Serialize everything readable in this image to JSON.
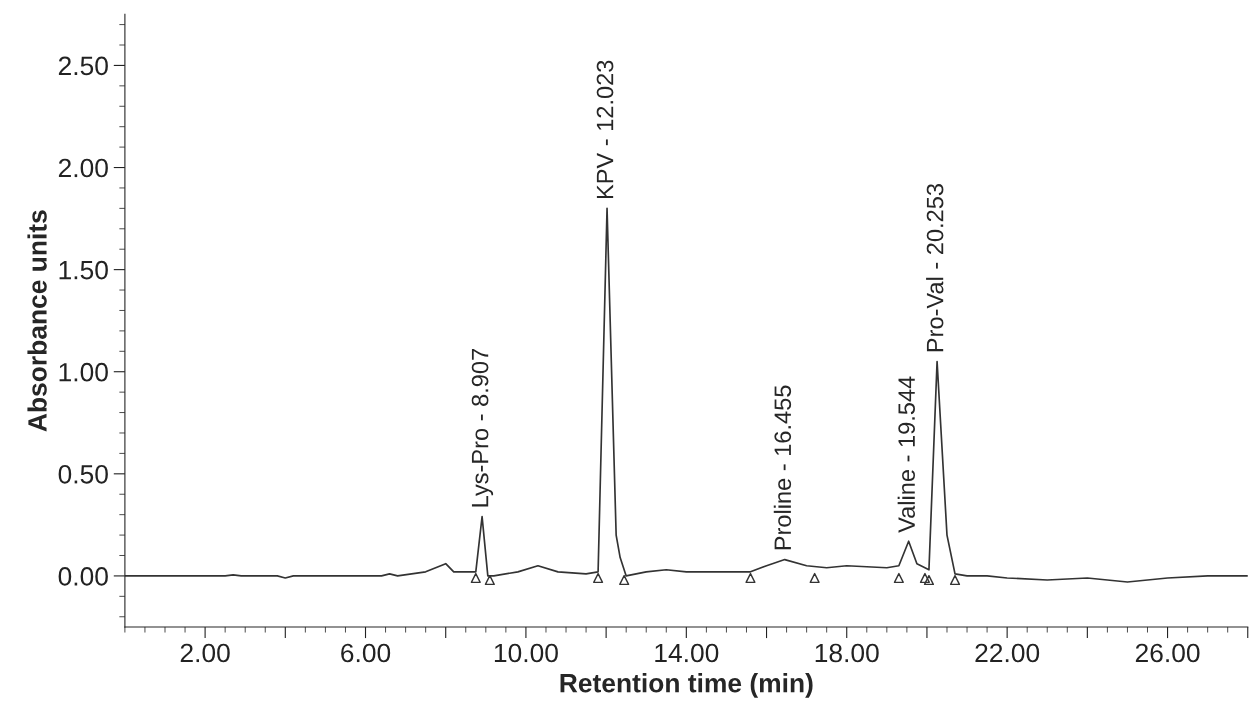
{
  "chart_data": {
    "type": "line",
    "xlabel": "Retention time (min)",
    "ylabel": "Absorbance units",
    "xlim": [
      0,
      28
    ],
    "ylim": [
      -0.25,
      2.75
    ],
    "xticks": [
      {
        "value": 2,
        "label": "2.00"
      },
      {
        "value": 4,
        "label": null
      },
      {
        "value": 6,
        "label": "6.00"
      },
      {
        "value": 8,
        "label": null
      },
      {
        "value": 10,
        "label": "10.00"
      },
      {
        "value": 12,
        "label": null
      },
      {
        "value": 14,
        "label": "14.00"
      },
      {
        "value": 16,
        "label": null
      },
      {
        "value": 18,
        "label": "18.00"
      },
      {
        "value": 20,
        "label": null
      },
      {
        "value": 22,
        "label": "22.00"
      },
      {
        "value": 24,
        "label": null
      },
      {
        "value": 26,
        "label": "26.00"
      },
      {
        "value": 28,
        "label": null
      }
    ],
    "yticks": [
      {
        "value": 0,
        "label": "0.00"
      },
      {
        "value": 0.5,
        "label": "0.50"
      },
      {
        "value": 1,
        "label": "1.00"
      },
      {
        "value": 1.5,
        "label": "1.50"
      },
      {
        "value": 2,
        "label": "2.00"
      },
      {
        "value": 2.5,
        "label": "2.50"
      }
    ],
    "grid": false,
    "legend": false,
    "series": [
      {
        "color": "#333333",
        "marker": "none",
        "x": [
          0,
          2.5,
          2.7,
          2.9,
          3.8,
          4.0,
          4.2,
          6.4,
          6.6,
          6.8,
          7.5,
          8.0,
          8.2,
          8.6,
          8.75,
          8.907,
          9.05,
          9.2,
          9.8,
          10.3,
          10.8,
          11.5,
          11.8,
          12.023,
          12.25,
          12.35,
          12.5,
          13.0,
          13.5,
          14.0,
          15.0,
          15.6,
          16.0,
          16.455,
          17.0,
          17.5,
          18.0,
          19.0,
          19.3,
          19.544,
          19.75,
          19.95,
          20.05,
          20.253,
          20.5,
          20.7,
          21.0,
          21.5,
          22.0,
          23.0,
          24.0,
          25.0,
          26.0,
          27.0,
          28.0
        ],
        "values": [
          0,
          0,
          0.005,
          0,
          0,
          -0.01,
          0,
          0,
          0.01,
          0,
          0.02,
          0.06,
          0.02,
          0.02,
          0.02,
          0.29,
          0.0,
          0.0,
          0.02,
          0.05,
          0.02,
          0.01,
          0.02,
          1.8,
          0.2,
          0.09,
          0.0,
          0.02,
          0.03,
          0.02,
          0.02,
          0.02,
          0.05,
          0.08,
          0.05,
          0.04,
          0.05,
          0.04,
          0.05,
          0.17,
          0.06,
          0.04,
          0.03,
          1.05,
          0.2,
          0.01,
          0.0,
          0.0,
          -0.01,
          -0.02,
          -0.01,
          -0.03,
          -0.01,
          0.0,
          0.0
        ]
      },
      {
        "type": "scatter",
        "color": "#333333",
        "marker": "triangle",
        "x": [
          8.75,
          9.1,
          11.8,
          12.45,
          15.6,
          17.2,
          19.3,
          19.95,
          20.05,
          20.7
        ],
        "values": [
          -0.01,
          -0.02,
          -0.01,
          -0.02,
          -0.01,
          -0.01,
          -0.01,
          -0.01,
          -0.02,
          -0.02
        ]
      }
    ],
    "annotations": [
      {
        "text": "Lys-Pro - 8.907",
        "x": 8.907,
        "y": 0.29
      },
      {
        "text": "KPV - 12.023",
        "x": 12.023,
        "y": 1.8
      },
      {
        "text": "Proline - 16.455",
        "x": 16.455,
        "y": 0.08
      },
      {
        "text": "Valine - 19.544",
        "x": 19.544,
        "y": 0.17
      },
      {
        "text": "Pro-Val - 20.253",
        "x": 20.253,
        "y": 1.05
      }
    ]
  }
}
